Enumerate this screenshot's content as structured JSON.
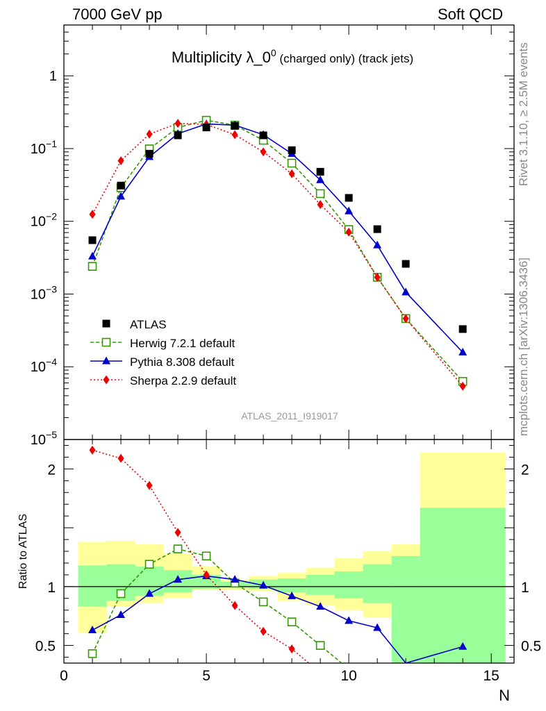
{
  "header": {
    "left": "7000 GeV pp",
    "right": "Soft QCD"
  },
  "side": {
    "version": "Rivet 3.1.10, ≥ 2.5M events",
    "source": "mcplots.cern.ch [arXiv:1306.3436]"
  },
  "chart_data": {
    "type": "scatter",
    "title_main": "Multiplicity λ_0",
    "title_sup": "0",
    "title_sub": " (charged only) (track jets)",
    "watermark": "ATLAS_2011_I919017",
    "xlabel": "N",
    "ratio_ylabel": "Ratio to ATLAS",
    "xlim": [
      0,
      15.8
    ],
    "ylim_main_log": [
      1e-05,
      5
    ],
    "ylim_ratio": [
      0.35,
      2.25
    ],
    "x_ticks": [
      "0",
      "5",
      "10",
      "15"
    ],
    "y_ticks_main": [
      {
        "base": "10",
        "exp": "−5",
        "v": 1e-05
      },
      {
        "base": "10",
        "exp": "−4",
        "v": 0.0001
      },
      {
        "base": "10",
        "exp": "−3",
        "v": 0.001
      },
      {
        "base": "10",
        "exp": "−2",
        "v": 0.01
      },
      {
        "base": "10",
        "exp": "−1",
        "v": 0.1
      },
      {
        "base": "1",
        "exp": "",
        "v": 1
      }
    ],
    "y_ticks_ratio": [
      "0.5",
      "1",
      "2"
    ],
    "data": {
      "name": "ATLAS",
      "x": [
        1,
        2,
        3,
        4,
        5,
        6,
        7,
        8,
        9,
        10,
        11,
        12,
        14
      ],
      "y": [
        0.0055,
        0.031,
        0.085,
        0.152,
        0.195,
        0.205,
        0.152,
        0.095,
        0.048,
        0.021,
        0.0078,
        0.0026,
        0.00033
      ]
    },
    "series": [
      {
        "name": "Herwig 7.2.1 default",
        "color": "#339900",
        "marker": "open-square",
        "dash": "5,3",
        "x": [
          1,
          2,
          3,
          4,
          5,
          6,
          7,
          8,
          9,
          10,
          11,
          12,
          14
        ],
        "y": [
          0.0024,
          0.029,
          0.099,
          0.195,
          0.245,
          0.21,
          0.13,
          0.063,
          0.024,
          0.0077,
          0.0017,
          0.00046,
          6.3e-05
        ],
        "ratio_x": [
          1,
          2,
          3,
          4,
          5,
          6,
          7,
          8,
          9,
          10
        ],
        "ratio_y": [
          0.43,
          0.94,
          1.19,
          1.32,
          1.26,
          1.03,
          0.87,
          0.7,
          0.5,
          0.3
        ]
      },
      {
        "name": "Pythia 8.308 default",
        "color": "#0000cc",
        "marker": "triangle",
        "dash": "",
        "x": [
          1,
          2,
          3,
          4,
          5,
          6,
          7,
          8,
          9,
          10,
          11,
          12,
          14
        ],
        "y": [
          0.0033,
          0.022,
          0.077,
          0.16,
          0.218,
          0.21,
          0.155,
          0.085,
          0.037,
          0.0138,
          0.0047,
          0.00106,
          0.000158
        ],
        "ratio_x": [
          1,
          2,
          3,
          4,
          5,
          6,
          7,
          8,
          9,
          10,
          11,
          12,
          14
        ],
        "ratio_y": [
          0.63,
          0.76,
          0.94,
          1.06,
          1.09,
          1.06,
          1.01,
          0.92,
          0.83,
          0.71,
          0.65,
          0.35,
          0.49
        ]
      },
      {
        "name": "Sherpa 2.2.9 default",
        "color": "#ee0000",
        "marker": "diamond",
        "dash": "2,3",
        "x": [
          1,
          2,
          3,
          4,
          5,
          6,
          7,
          8,
          9,
          10,
          11,
          12,
          14
        ],
        "y": [
          0.0125,
          0.068,
          0.158,
          0.222,
          0.215,
          0.155,
          0.09,
          0.045,
          0.017,
          0.0071,
          0.0017,
          0.00046,
          5.4e-05
        ],
        "ratio_x": [
          1,
          2,
          3,
          4,
          5,
          6,
          7,
          8,
          8.6
        ],
        "ratio_y": [
          2.16,
          2.09,
          1.86,
          1.46,
          1.1,
          0.84,
          0.62,
          0.47,
          0.35
        ]
      }
    ],
    "uncertainty_bands": {
      "edges": [
        0.5,
        1.5,
        2.5,
        3.5,
        4.5,
        5.5,
        6.5,
        7.5,
        8.5,
        9.5,
        10.5,
        11.5,
        12.5,
        15.5
      ],
      "yellow_lo": [
        0.61,
        0.83,
        0.86,
        0.9,
        0.97,
        0.97,
        0.96,
        0.88,
        0.84,
        0.8,
        0.74,
        0.35,
        0.35
      ],
      "yellow_hi": [
        1.38,
        1.39,
        1.36,
        1.28,
        1.17,
        1.06,
        1.09,
        1.12,
        1.16,
        1.24,
        1.3,
        1.36,
        2.14
      ],
      "green_lo": [
        0.83,
        0.88,
        0.92,
        0.95,
        0.98,
        0.99,
        0.98,
        0.95,
        0.93,
        0.9,
        0.86,
        0.35,
        0.35
      ],
      "green_hi": [
        1.18,
        1.19,
        1.17,
        1.14,
        1.1,
        1.04,
        1.06,
        1.07,
        1.1,
        1.13,
        1.19,
        1.26,
        1.67
      ]
    }
  }
}
